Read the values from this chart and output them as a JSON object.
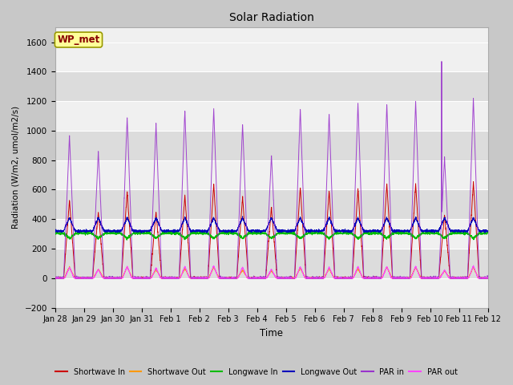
{
  "title": "Solar Radiation",
  "ylabel": "Radiation (W/m2, umol/m2/s)",
  "xlabel": "Time",
  "ylim": [
    -200,
    1700
  ],
  "yticks": [
    -200,
    0,
    200,
    400,
    600,
    800,
    1000,
    1200,
    1400,
    1600
  ],
  "fig_bg_color": "#c8c8c8",
  "plot_bg_color": "#f0f0f0",
  "label_box_text": "WP_met",
  "label_box_facecolor": "#ffff99",
  "label_box_edgecolor": "#999900",
  "series": {
    "shortwave_in": {
      "color": "#cc0000",
      "label": "Shortwave In"
    },
    "shortwave_out": {
      "color": "#ff9900",
      "label": "Shortwave Out"
    },
    "longwave_in": {
      "color": "#00bb00",
      "label": "Longwave In"
    },
    "longwave_out": {
      "color": "#0000bb",
      "label": "Longwave Out"
    },
    "par_in": {
      "color": "#9933cc",
      "label": "PAR in"
    },
    "par_out": {
      "color": "#ff44ff",
      "label": "PAR out"
    }
  },
  "x_tick_labels": [
    "Jan 28",
    "Jan 29",
    "Jan 30",
    "Jan 31",
    "Feb 1",
    "Feb 2",
    "Feb 3",
    "Feb 4",
    "Feb 5",
    "Feb 6",
    "Feb 7",
    "Feb 8",
    "Feb 9",
    "Feb 10",
    "Feb 11",
    "Feb 12"
  ],
  "n_days": 15,
  "pts_per_day": 288,
  "band_colors": [
    "#f0f0f0",
    "#dcdcdc"
  ]
}
